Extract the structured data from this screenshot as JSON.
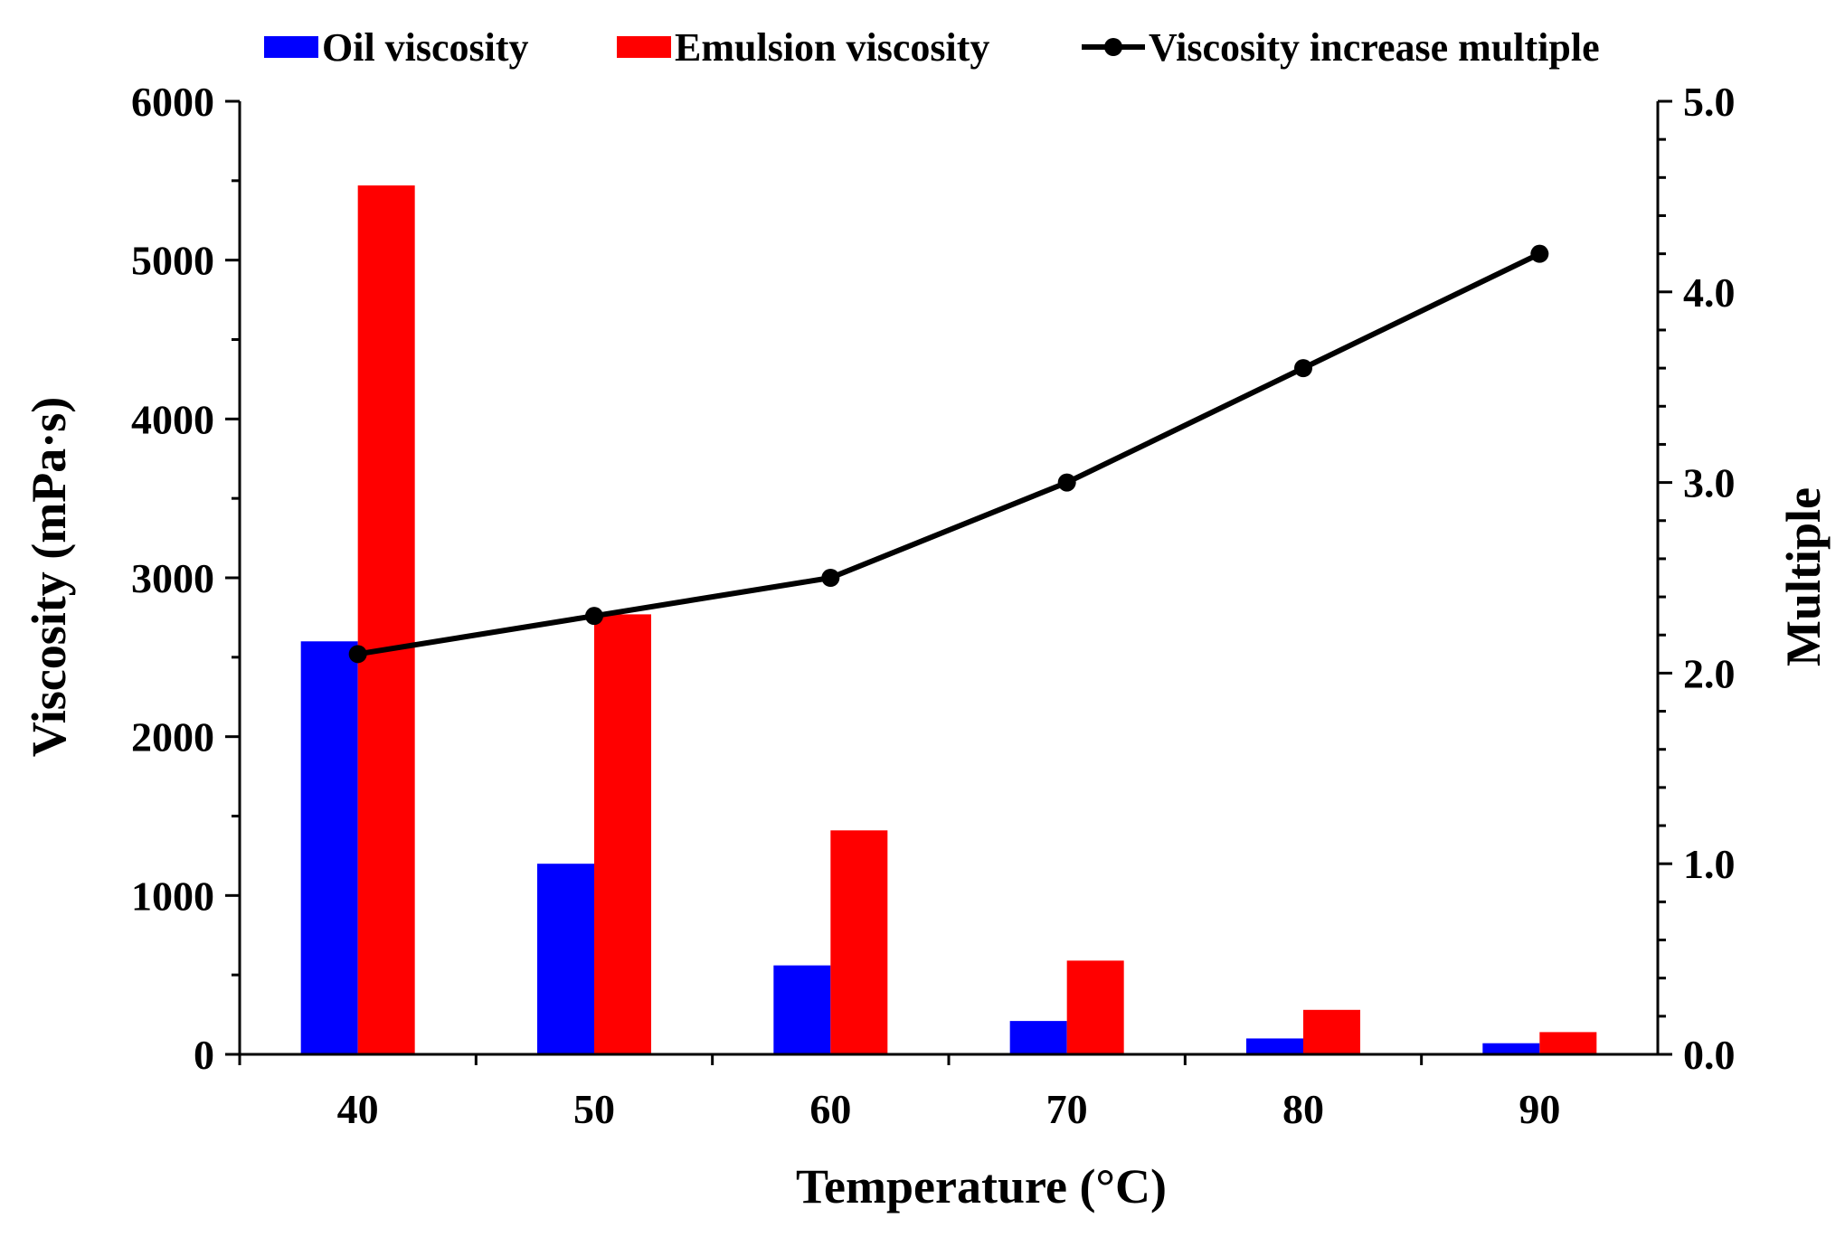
{
  "chart_data": {
    "type": "bar",
    "categories": [
      "40",
      "50",
      "60",
      "70",
      "80",
      "90"
    ],
    "series": [
      {
        "name": "Oil viscosity",
        "kind": "bar",
        "axis": "left",
        "color": "#0000ff",
        "values": [
          2600,
          1200,
          560,
          210,
          100,
          70
        ]
      },
      {
        "name": "Emulsion viscosity",
        "kind": "bar",
        "axis": "left",
        "color": "#ff0000",
        "values": [
          5470,
          2770,
          1410,
          590,
          280,
          140
        ]
      },
      {
        "name": "Viscosity increase multiple",
        "kind": "line",
        "axis": "right",
        "color": "#000000",
        "values": [
          2.1,
          2.3,
          2.5,
          3.0,
          3.6,
          4.2
        ]
      }
    ],
    "xlabel": "Temperature (°C)",
    "ylabel": "Viscosity (mPa·s)",
    "y2label": "Multiple",
    "ylim": [
      0,
      6000
    ],
    "y2lim": [
      0,
      5
    ],
    "yticks": [
      "0",
      "1000",
      "2000",
      "3000",
      "4000",
      "5000",
      "6000"
    ],
    "y2ticks": [
      "0.0",
      "1.0",
      "2.0",
      "3.0",
      "4.0",
      "5.0"
    ],
    "legend": [
      {
        "label": "Oil viscosity",
        "marker": "bar",
        "color": "#0000ff"
      },
      {
        "label": "Emulsion viscosity",
        "marker": "bar",
        "color": "#ff0000"
      },
      {
        "label": "Viscosity increase multiple",
        "marker": "line",
        "color": "#000000"
      }
    ],
    "legend_position": "top"
  }
}
